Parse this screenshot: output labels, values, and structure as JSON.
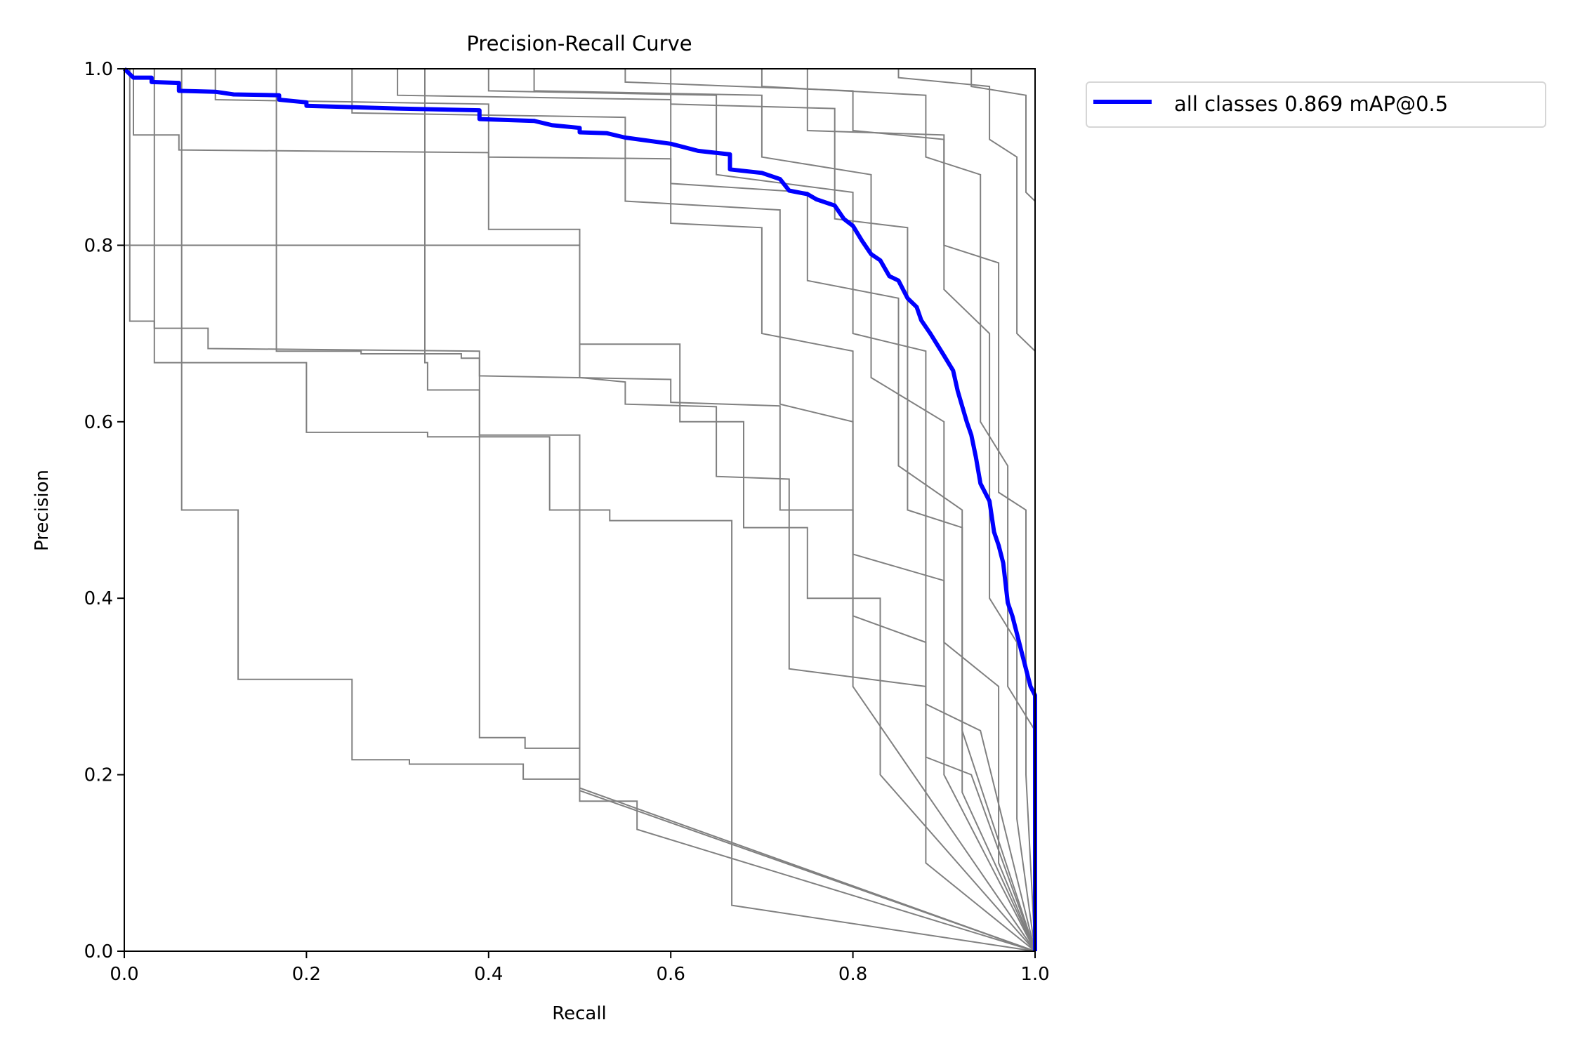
{
  "chart_data": {
    "type": "line",
    "title": "Precision-Recall Curve",
    "xlabel": "Recall",
    "ylabel": "Precision",
    "xlim": [
      0,
      1
    ],
    "ylim": [
      0,
      1
    ],
    "xticks": [
      "0.0",
      "0.2",
      "0.4",
      "0.6",
      "0.8",
      "1.0"
    ],
    "yticks": [
      "0.0",
      "0.2",
      "0.4",
      "0.6",
      "0.8",
      "1.0"
    ],
    "grid": false,
    "legend_placement": "outside-top-right",
    "colors": {
      "per_class": "#808080",
      "all_classes": "#0000ff"
    },
    "series": [
      {
        "name": "all classes 0.869 mAP@0.5",
        "color": "#0000ff",
        "points": [
          [
            0,
            1.0
          ],
          [
            0.01,
            0.99
          ],
          [
            0.03,
            0.99
          ],
          [
            0.03,
            0.985
          ],
          [
            0.06,
            0.984
          ],
          [
            0.06,
            0.975
          ],
          [
            0.1,
            0.974
          ],
          [
            0.12,
            0.971
          ],
          [
            0.17,
            0.97
          ],
          [
            0.17,
            0.965
          ],
          [
            0.2,
            0.962
          ],
          [
            0.2,
            0.958
          ],
          [
            0.3,
            0.955
          ],
          [
            0.39,
            0.953
          ],
          [
            0.39,
            0.943
          ],
          [
            0.45,
            0.941
          ],
          [
            0.47,
            0.936
          ],
          [
            0.5,
            0.933
          ],
          [
            0.5,
            0.928
          ],
          [
            0.53,
            0.927
          ],
          [
            0.55,
            0.922
          ],
          [
            0.6,
            0.915
          ],
          [
            0.63,
            0.907
          ],
          [
            0.665,
            0.903
          ],
          [
            0.665,
            0.886
          ],
          [
            0.7,
            0.882
          ],
          [
            0.72,
            0.875
          ],
          [
            0.73,
            0.862
          ],
          [
            0.75,
            0.858
          ],
          [
            0.76,
            0.852
          ],
          [
            0.78,
            0.845
          ],
          [
            0.79,
            0.83
          ],
          [
            0.8,
            0.822
          ],
          [
            0.81,
            0.805
          ],
          [
            0.82,
            0.79
          ],
          [
            0.83,
            0.783
          ],
          [
            0.84,
            0.765
          ],
          [
            0.85,
            0.76
          ],
          [
            0.86,
            0.74
          ],
          [
            0.87,
            0.73
          ],
          [
            0.875,
            0.715
          ],
          [
            0.885,
            0.7
          ],
          [
            0.9,
            0.675
          ],
          [
            0.91,
            0.658
          ],
          [
            0.915,
            0.635
          ],
          [
            0.925,
            0.6
          ],
          [
            0.93,
            0.585
          ],
          [
            0.935,
            0.56
          ],
          [
            0.94,
            0.53
          ],
          [
            0.95,
            0.51
          ],
          [
            0.955,
            0.475
          ],
          [
            0.96,
            0.46
          ],
          [
            0.965,
            0.44
          ],
          [
            0.97,
            0.395
          ],
          [
            0.975,
            0.38
          ],
          [
            0.98,
            0.36
          ],
          [
            0.985,
            0.34
          ],
          [
            0.99,
            0.32
          ],
          [
            0.995,
            0.3
          ],
          [
            1.0,
            0.29
          ],
          [
            1.0,
            0
          ]
        ]
      }
    ],
    "per_class_series": [
      {
        "points": [
          [
            0,
            1
          ],
          [
            0.063,
            1
          ],
          [
            0.063,
            0.5
          ],
          [
            0.125,
            0.5
          ],
          [
            0.125,
            0.308
          ],
          [
            0.25,
            0.308
          ],
          [
            0.25,
            0.217
          ],
          [
            0.313,
            0.217
          ],
          [
            0.313,
            0.212
          ],
          [
            0.438,
            0.212
          ],
          [
            0.438,
            0.195
          ],
          [
            0.5,
            0.195
          ],
          [
            0.5,
            0.17
          ],
          [
            0.563,
            0.17
          ],
          [
            0.563,
            0.138
          ],
          [
            1,
            0
          ]
        ]
      },
      {
        "points": [
          [
            0,
            1
          ],
          [
            0.006,
            1
          ],
          [
            0.006,
            0.714
          ],
          [
            0.033,
            0.714
          ],
          [
            0.033,
            0.706
          ],
          [
            0.092,
            0.706
          ],
          [
            0.092,
            0.683
          ],
          [
            0.39,
            0.68
          ],
          [
            0.39,
            0.242
          ],
          [
            0.44,
            0.242
          ],
          [
            0.44,
            0.23
          ],
          [
            0.5,
            0.23
          ],
          [
            0.5,
            0.185
          ],
          [
            1,
            0
          ]
        ]
      },
      {
        "points": [
          [
            0,
            1
          ],
          [
            0.033,
            1
          ],
          [
            0.033,
            0.667
          ],
          [
            0.2,
            0.667
          ],
          [
            0.2,
            0.588
          ],
          [
            0.333,
            0.588
          ],
          [
            0.333,
            0.583
          ],
          [
            0.467,
            0.583
          ],
          [
            0.467,
            0.5
          ],
          [
            0.533,
            0.5
          ],
          [
            0.533,
            0.488
          ],
          [
            0.667,
            0.488
          ],
          [
            0.667,
            0.052
          ],
          [
            1,
            0
          ]
        ]
      },
      {
        "points": [
          [
            0,
            1
          ],
          [
            0.167,
            1
          ],
          [
            0.167,
            0.68
          ],
          [
            0.26,
            0.68
          ],
          [
            0.26,
            0.677
          ],
          [
            0.37,
            0.677
          ],
          [
            0.37,
            0.672
          ],
          [
            0.39,
            0.672
          ],
          [
            0.39,
            0.652
          ],
          [
            0.6,
            0.648
          ],
          [
            0.6,
            0.622
          ],
          [
            0.72,
            0.618
          ],
          [
            0.72,
            0.5
          ],
          [
            0.8,
            0.5
          ],
          [
            0.8,
            0.3
          ],
          [
            1,
            0
          ]
        ]
      },
      {
        "points": [
          [
            0,
            1
          ],
          [
            0.33,
            1
          ],
          [
            0.33,
            0.667
          ],
          [
            0.333,
            0.667
          ],
          [
            0.333,
            0.636
          ],
          [
            0.39,
            0.636
          ],
          [
            0.39,
            0.585
          ],
          [
            0.5,
            0.585
          ],
          [
            0.5,
            0.5
          ],
          [
            0.5,
            0.182
          ],
          [
            1,
            0
          ]
        ]
      },
      {
        "points": [
          [
            0,
            0.8
          ],
          [
            0.5,
            0.8
          ],
          [
            0.5,
            0.688
          ],
          [
            0.61,
            0.688
          ],
          [
            0.61,
            0.6
          ],
          [
            0.68,
            0.6
          ],
          [
            0.68,
            0.48
          ],
          [
            0.75,
            0.48
          ],
          [
            0.75,
            0.4
          ],
          [
            0.83,
            0.4
          ],
          [
            0.83,
            0.2
          ],
          [
            1,
            0
          ]
        ]
      },
      {
        "points": [
          [
            0,
            1
          ],
          [
            0.01,
            1
          ],
          [
            0.01,
            0.925
          ],
          [
            0.06,
            0.925
          ],
          [
            0.06,
            0.908
          ],
          [
            0.4,
            0.905
          ],
          [
            0.4,
            0.818
          ],
          [
            0.5,
            0.818
          ],
          [
            0.5,
            0.65
          ],
          [
            0.55,
            0.645
          ],
          [
            0.55,
            0.62
          ],
          [
            0.65,
            0.617
          ],
          [
            0.65,
            0.538
          ],
          [
            0.73,
            0.535
          ],
          [
            0.73,
            0.32
          ],
          [
            0.88,
            0.3
          ],
          [
            0.88,
            0.1
          ],
          [
            1,
            0
          ]
        ]
      },
      {
        "points": [
          [
            0,
            1
          ],
          [
            0.1,
            1
          ],
          [
            0.1,
            0.965
          ],
          [
            0.4,
            0.96
          ],
          [
            0.4,
            0.9
          ],
          [
            0.6,
            0.898
          ],
          [
            0.6,
            0.825
          ],
          [
            0.7,
            0.82
          ],
          [
            0.7,
            0.7
          ],
          [
            0.8,
            0.68
          ],
          [
            0.8,
            0.45
          ],
          [
            0.9,
            0.42
          ],
          [
            0.9,
            0.2
          ],
          [
            1,
            0
          ]
        ]
      },
      {
        "points": [
          [
            0,
            1
          ],
          [
            0.3,
            1
          ],
          [
            0.3,
            0.97
          ],
          [
            0.6,
            0.965
          ],
          [
            0.6,
            0.87
          ],
          [
            0.75,
            0.86
          ],
          [
            0.75,
            0.76
          ],
          [
            0.85,
            0.74
          ],
          [
            0.85,
            0.55
          ],
          [
            0.92,
            0.5
          ],
          [
            0.92,
            0.25
          ],
          [
            1,
            0
          ]
        ]
      },
      {
        "points": [
          [
            0,
            1
          ],
          [
            0.45,
            1
          ],
          [
            0.45,
            0.975
          ],
          [
            0.7,
            0.97
          ],
          [
            0.7,
            0.9
          ],
          [
            0.82,
            0.88
          ],
          [
            0.82,
            0.65
          ],
          [
            0.9,
            0.6
          ],
          [
            0.9,
            0.35
          ],
          [
            0.96,
            0.3
          ],
          [
            0.96,
            0.1
          ],
          [
            1,
            0
          ]
        ]
      },
      {
        "points": [
          [
            0,
            1
          ],
          [
            0.55,
            1
          ],
          [
            0.55,
            0.985
          ],
          [
            0.8,
            0.975
          ],
          [
            0.8,
            0.93
          ],
          [
            0.9,
            0.92
          ],
          [
            0.9,
            0.75
          ],
          [
            0.95,
            0.7
          ],
          [
            0.95,
            0.4
          ],
          [
            0.98,
            0.35
          ],
          [
            0.98,
            0.15
          ],
          [
            1,
            0
          ]
        ]
      },
      {
        "points": [
          [
            0,
            1
          ],
          [
            0.7,
            1
          ],
          [
            0.7,
            0.98
          ],
          [
            0.88,
            0.97
          ],
          [
            0.88,
            0.9
          ],
          [
            0.94,
            0.88
          ],
          [
            0.94,
            0.6
          ],
          [
            0.97,
            0.55
          ],
          [
            0.97,
            0.3
          ],
          [
            1,
            0.25
          ],
          [
            1,
            0
          ]
        ]
      },
      {
        "points": [
          [
            0,
            1
          ],
          [
            0.85,
            1
          ],
          [
            0.85,
            0.99
          ],
          [
            0.95,
            0.98
          ],
          [
            0.95,
            0.92
          ],
          [
            0.98,
            0.9
          ],
          [
            0.98,
            0.7
          ],
          [
            1,
            0.68
          ],
          [
            1,
            0
          ]
        ]
      },
      {
        "points": [
          [
            0,
            1
          ],
          [
            0.25,
            1
          ],
          [
            0.25,
            0.95
          ],
          [
            0.55,
            0.945
          ],
          [
            0.55,
            0.85
          ],
          [
            0.72,
            0.84
          ],
          [
            0.72,
            0.62
          ],
          [
            0.8,
            0.6
          ],
          [
            0.8,
            0.38
          ],
          [
            0.88,
            0.35
          ],
          [
            0.88,
            0.22
          ],
          [
            0.93,
            0.2
          ],
          [
            1,
            0
          ]
        ]
      },
      {
        "points": [
          [
            0,
            1
          ],
          [
            0.6,
            1
          ],
          [
            0.6,
            0.96
          ],
          [
            0.78,
            0.955
          ],
          [
            0.78,
            0.83
          ],
          [
            0.86,
            0.82
          ],
          [
            0.86,
            0.5
          ],
          [
            0.92,
            0.48
          ],
          [
            0.92,
            0.18
          ],
          [
            1,
            0
          ]
        ]
      },
      {
        "points": [
          [
            0,
            1
          ],
          [
            0.75,
            1
          ],
          [
            0.75,
            0.93
          ],
          [
            0.9,
            0.925
          ],
          [
            0.9,
            0.8
          ],
          [
            0.96,
            0.78
          ],
          [
            0.96,
            0.52
          ],
          [
            0.99,
            0.5
          ],
          [
            0.99,
            0.2
          ],
          [
            1,
            0
          ]
        ]
      },
      {
        "points": [
          [
            0,
            1
          ],
          [
            0.93,
            1
          ],
          [
            0.93,
            0.98
          ],
          [
            0.99,
            0.97
          ],
          [
            0.99,
            0.86
          ],
          [
            1,
            0.85
          ],
          [
            1,
            0
          ]
        ]
      },
      {
        "points": [
          [
            0,
            1
          ],
          [
            0.4,
            1
          ],
          [
            0.4,
            0.975
          ],
          [
            0.65,
            0.97
          ],
          [
            0.65,
            0.88
          ],
          [
            0.8,
            0.86
          ],
          [
            0.8,
            0.7
          ],
          [
            0.88,
            0.68
          ],
          [
            0.88,
            0.28
          ],
          [
            0.94,
            0.25
          ],
          [
            1,
            0
          ]
        ]
      }
    ]
  }
}
